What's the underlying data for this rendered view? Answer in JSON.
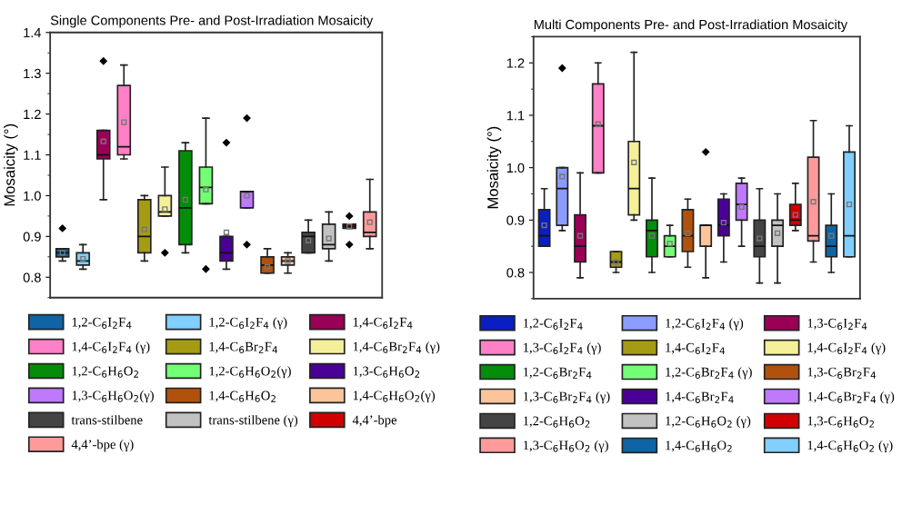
{
  "chart_data": [
    {
      "type": "box",
      "title": "Single Components Pre- and Post-Irradiation Mosaicity",
      "ylabel": "Mosaicity (°)",
      "tick_labels": "y",
      "legend": "bottom",
      "ylim": [
        0.75,
        1.4
      ],
      "yticks": [
        0.8,
        0.9,
        {
          "value": 1.0,
          "label": "1.0"
        },
        1.1,
        1.2,
        1.3,
        1.4
      ],
      "categories": [
        null,
        null,
        null,
        null,
        null,
        null,
        null,
        null,
        null,
        null,
        null,
        null,
        null,
        null,
        null,
        null
      ],
      "series": [
        {
          "name": "1,2-C$_{6}$I$_{2}$F$_{4}$",
          "color": "#0e64a4",
          "boxes": [
            {
              "low": 0.84,
              "q1": 0.85,
              "median": 0.86,
              "q3": 0.87,
              "high": 0.87,
              "mean": 0.86,
              "outliers": [
                0.92
              ]
            },
            null,
            null,
            null,
            null,
            null,
            null,
            null,
            null,
            null,
            null,
            null,
            null,
            null,
            null,
            null
          ]
        },
        {
          "name": "1,2-C$_{6}$I$_{2}$F$_{4}$ (γ)",
          "color": "#80cfff",
          "boxes": [
            null,
            {
              "low": 0.82,
              "q1": 0.83,
              "median": 0.84,
              "q3": 0.86,
              "high": 0.88,
              "mean": 0.845
            },
            null,
            null,
            null,
            null,
            null,
            null,
            null,
            null,
            null,
            null,
            null,
            null,
            null,
            null
          ]
        },
        {
          "name": "1,4-C$_{6}$I$_{2}$F$_{4}$",
          "color": "#9b0057",
          "boxes": [
            null,
            null,
            {
              "low": 0.99,
              "q1": 1.09,
              "median": 1.1,
              "q3": 1.16,
              "high": 1.16,
              "mean": 1.133,
              "outliers": [
                1.33
              ]
            },
            null,
            null,
            null,
            null,
            null,
            null,
            null,
            null,
            null,
            null,
            null,
            null,
            null
          ]
        },
        {
          "name": "1,4-C$_{6}$I$_{2}$F$_{4}$ (γ)",
          "color": "#ff80c6",
          "boxes": [
            null,
            null,
            null,
            {
              "low": 1.09,
              "q1": 1.1,
              "median": 1.12,
              "q3": 1.27,
              "high": 1.32,
              "mean": 1.18
            },
            null,
            null,
            null,
            null,
            null,
            null,
            null,
            null,
            null,
            null,
            null,
            null
          ]
        },
        {
          "name": "1,4-C$_{6}$Br$_{2}$F$_{4}$",
          "color": "#a59c14",
          "boxes": [
            null,
            null,
            null,
            null,
            {
              "low": 0.84,
              "q1": 0.86,
              "median": 0.9,
              "q3": 0.99,
              "high": 1.0,
              "mean": 0.917
            },
            null,
            null,
            null,
            null,
            null,
            null,
            null,
            null,
            null,
            null,
            null
          ]
        },
        {
          "name": "1,4-C$_{6}$Br$_{2}$F$_{4}$ (γ)",
          "color": "#f4f09a",
          "boxes": [
            null,
            null,
            null,
            null,
            null,
            {
              "low": 0.95,
              "q1": 0.95,
              "median": 0.96,
              "q3": 1.0,
              "high": 1.07,
              "mean": 0.967,
              "outliers": [
                0.86
              ]
            },
            null,
            null,
            null,
            null,
            null,
            null,
            null,
            null,
            null,
            null
          ]
        },
        {
          "name": "1,2-C$_{6}$H$_{6}$O$_{2}$",
          "color": "#048c0a",
          "boxes": [
            null,
            null,
            null,
            null,
            null,
            null,
            {
              "low": 0.86,
              "q1": 0.88,
              "median": 0.97,
              "q3": 1.11,
              "high": 1.13,
              "mean": 0.99
            },
            null,
            null,
            null,
            null,
            null,
            null,
            null,
            null,
            null
          ]
        },
        {
          "name": "1,2-C$_{6}$H$_{6}$O$_{2}$(γ)",
          "color": "#74fe76",
          "boxes": [
            null,
            null,
            null,
            null,
            null,
            null,
            null,
            {
              "low": 0.98,
              "q1": 0.98,
              "median": 1.02,
              "q3": 1.07,
              "high": 1.19,
              "mean": 1.015,
              "outliers": [
                0.82
              ]
            },
            null,
            null,
            null,
            null,
            null,
            null,
            null,
            null
          ]
        },
        {
          "name": "1,3-C$_{6}$H$_{6}$O$_{2}$",
          "color": "#4a0096",
          "boxes": [
            null,
            null,
            null,
            null,
            null,
            null,
            null,
            null,
            {
              "low": 0.82,
              "q1": 0.84,
              "median": 0.86,
              "q3": 0.9,
              "high": 0.9,
              "mean": 0.91,
              "outliers": [
                1.13
              ]
            },
            null,
            null,
            null,
            null,
            null,
            null,
            null
          ]
        },
        {
          "name": "1,3-C$_{6}$H$_{6}$O$_{2}$(γ)",
          "color": "#bf79fc",
          "boxes": [
            null,
            null,
            null,
            null,
            null,
            null,
            null,
            null,
            null,
            {
              "low": 0.97,
              "q1": 0.97,
              "median": 1.01,
              "q3": 1.01,
              "high": 1.01,
              "mean": 1.0,
              "outliers": [
                1.19,
                0.88
              ]
            },
            null,
            null,
            null,
            null,
            null,
            null
          ]
        },
        {
          "name": "1,4-C$_{6}$H$_{6}$O$_{2}$",
          "color": "#b0520d",
          "boxes": [
            null,
            null,
            null,
            null,
            null,
            null,
            null,
            null,
            null,
            null,
            {
              "low": 0.81,
              "q1": 0.81,
              "median": 0.83,
              "q3": 0.85,
              "high": 0.87,
              "mean": 0.825
            },
            null,
            null,
            null,
            null,
            null
          ]
        },
        {
          "name": "1,4-C$_{6}$H$_{6}$O$_{2}$(γ)",
          "color": "#fcc49a",
          "boxes": [
            null,
            null,
            null,
            null,
            null,
            null,
            null,
            null,
            null,
            null,
            null,
            {
              "low": 0.81,
              "q1": 0.83,
              "median": 0.84,
              "q3": 0.85,
              "high": 0.86,
              "mean": 0.84
            },
            null,
            null,
            null,
            null
          ]
        },
        {
          "name": "trans-stilbene",
          "color": "#444444",
          "boxes": [
            null,
            null,
            null,
            null,
            null,
            null,
            null,
            null,
            null,
            null,
            null,
            null,
            {
              "low": 0.86,
              "q1": 0.86,
              "median": 0.9,
              "q3": 0.91,
              "high": 0.94,
              "mean": 0.89
            },
            null,
            null,
            null
          ]
        },
        {
          "name": "trans-stilbene (γ)",
          "color": "#c2c2c2",
          "boxes": [
            null,
            null,
            null,
            null,
            null,
            null,
            null,
            null,
            null,
            null,
            null,
            null,
            null,
            {
              "low": 0.84,
              "q1": 0.87,
              "median": 0.88,
              "q3": 0.93,
              "high": 0.96,
              "mean": 0.895
            },
            null,
            null
          ]
        },
        {
          "name": "4,4’-bpe",
          "color": "#d00000",
          "boxes": [
            null,
            null,
            null,
            null,
            null,
            null,
            null,
            null,
            null,
            null,
            null,
            null,
            null,
            null,
            {
              "low": 0.92,
              "q1": 0.92,
              "median": 0.925,
              "q3": 0.93,
              "high": 0.93,
              "mean": 0.925,
              "outliers": [
                0.95,
                0.88
              ]
            },
            null
          ]
        },
        {
          "name": "4,4’-bpe (γ)",
          "color": "#ff9a9a",
          "boxes": [
            null,
            null,
            null,
            null,
            null,
            null,
            null,
            null,
            null,
            null,
            null,
            null,
            null,
            null,
            null,
            {
              "low": 0.87,
              "q1": 0.9,
              "median": 0.91,
              "q3": 0.96,
              "high": 1.04,
              "mean": 0.935
            }
          ]
        }
      ]
    },
    {
      "type": "box",
      "title": "Multi Components Pre- and Post-Irradiation Mosaicity",
      "ylabel": "Mosaicity (°)",
      "tick_labels": "y",
      "legend": "bottom",
      "ylim": [
        0.75,
        1.25
      ],
      "yticks": [
        0.8,
        0.9,
        {
          "value": 1.0,
          "label": "1.0"
        },
        1.1,
        1.2
      ],
      "categories": [
        null,
        null,
        null,
        null,
        null,
        null,
        null,
        null,
        null,
        null,
        null,
        null,
        null,
        null,
        null,
        null,
        null,
        null
      ],
      "series": [
        {
          "name": "1,2-C$_{6}$I$_{2}$F$_{4}$",
          "color": "#0a1ec2",
          "boxes": [
            {
              "low": 0.85,
              "q1": 0.85,
              "median": 0.87,
              "q3": 0.92,
              "high": 0.96,
              "mean": 0.89
            },
            null,
            null,
            null,
            null,
            null,
            null,
            null,
            null,
            null,
            null,
            null,
            null,
            null,
            null,
            null,
            null,
            null
          ]
        },
        {
          "name": "1,2-C$_{6}$I$_{2}$F$_{4}$ (γ)",
          "color": "#8c9cfc",
          "boxes": [
            null,
            {
              "low": 0.88,
              "q1": 0.89,
              "median": 0.96,
              "q3": 1.0,
              "high": 1.0,
              "mean": 0.983,
              "outliers": [
                1.19
              ]
            },
            null,
            null,
            null,
            null,
            null,
            null,
            null,
            null,
            null,
            null,
            null,
            null,
            null,
            null,
            null,
            null
          ]
        },
        {
          "name": "1,3-C$_{6}$I$_{2}$F$_{4}$",
          "color": "#9b0057",
          "boxes": [
            null,
            null,
            {
              "low": 0.79,
              "q1": 0.82,
              "median": 0.85,
              "q3": 0.91,
              "high": 0.99,
              "mean": 0.87
            },
            null,
            null,
            null,
            null,
            null,
            null,
            null,
            null,
            null,
            null,
            null,
            null,
            null,
            null,
            null
          ]
        },
        {
          "name": "1,3-C$_{6}$I$_{2}$F$_{4}$ (γ)",
          "color": "#ff80c6",
          "boxes": [
            null,
            null,
            null,
            {
              "low": 0.99,
              "q1": 0.99,
              "median": 1.08,
              "q3": 1.16,
              "high": 1.2,
              "mean": 1.083
            },
            null,
            null,
            null,
            null,
            null,
            null,
            null,
            null,
            null,
            null,
            null,
            null,
            null,
            null
          ]
        },
        {
          "name": "1,4-C$_{6}$I$_{2}$F$_{4}$",
          "color": "#a59c14",
          "boxes": [
            null,
            null,
            null,
            null,
            {
              "low": 0.8,
              "q1": 0.81,
              "median": 0.82,
              "q3": 0.84,
              "high": 0.84,
              "mean": 0.82
            },
            null,
            null,
            null,
            null,
            null,
            null,
            null,
            null,
            null,
            null,
            null,
            null,
            null
          ]
        },
        {
          "name": "1,4-C$_{6}$I$_{2}$F$_{4}$ (γ)",
          "color": "#f4f09a",
          "boxes": [
            null,
            null,
            null,
            null,
            null,
            {
              "low": 0.9,
              "q1": 0.91,
              "median": 0.96,
              "q3": 1.05,
              "high": 1.22,
              "mean": 1.01
            },
            null,
            null,
            null,
            null,
            null,
            null,
            null,
            null,
            null,
            null,
            null,
            null
          ]
        },
        {
          "name": "1,2-C$_{6}$Br$_{2}$F$_{4}$",
          "color": "#048c0a",
          "boxes": [
            null,
            null,
            null,
            null,
            null,
            null,
            {
              "low": 0.8,
              "q1": 0.83,
              "median": 0.88,
              "q3": 0.9,
              "high": 0.98,
              "mean": 0.87
            },
            null,
            null,
            null,
            null,
            null,
            null,
            null,
            null,
            null,
            null,
            null
          ]
        },
        {
          "name": "1,2-C$_{6}$Br$_{2}$F$_{4}$ (γ)",
          "color": "#74fe76",
          "boxes": [
            null,
            null,
            null,
            null,
            null,
            null,
            null,
            {
              "low": 0.83,
              "q1": 0.83,
              "median": 0.85,
              "q3": 0.87,
              "high": 0.89,
              "mean": 0.855
            },
            null,
            null,
            null,
            null,
            null,
            null,
            null,
            null,
            null,
            null
          ]
        },
        {
          "name": "1,3-C$_{6}$Br$_{2}$F$_{4}$",
          "color": "#b0520d",
          "boxes": [
            null,
            null,
            null,
            null,
            null,
            null,
            null,
            null,
            {
              "low": 0.81,
              "q1": 0.84,
              "median": 0.87,
              "q3": 0.92,
              "high": 0.94,
              "mean": 0.875
            },
            null,
            null,
            null,
            null,
            null,
            null,
            null,
            null,
            null
          ]
        },
        {
          "name": "1,3-C$_{6}$Br$_{2}$F$_{4}$ (γ)",
          "color": "#fcc49a",
          "boxes": [
            null,
            null,
            null,
            null,
            null,
            null,
            null,
            null,
            null,
            {
              "low": 0.79,
              "q1": 0.85,
              "median": 0.89,
              "q3": 0.89,
              "high": 0.89,
              "outliers": [
                1.03
              ]
            },
            null,
            null,
            null,
            null,
            null,
            null,
            null,
            null
          ]
        },
        {
          "name": "1,4-C$_{6}$Br$_{2}$F$_{4}$",
          "color": "#4a0096",
          "boxes": [
            null,
            null,
            null,
            null,
            null,
            null,
            null,
            null,
            null,
            null,
            {
              "low": 0.82,
              "q1": 0.87,
              "median": 0.89,
              "q3": 0.94,
              "high": 0.95,
              "mean": 0.895
            },
            null,
            null,
            null,
            null,
            null,
            null,
            null
          ]
        },
        {
          "name": "1,4-C$_{6}$Br$_{2}$F$_{4}$ (γ)",
          "color": "#bf79fc",
          "boxes": [
            null,
            null,
            null,
            null,
            null,
            null,
            null,
            null,
            null,
            null,
            null,
            {
              "low": 0.85,
              "q1": 0.9,
              "median": 0.93,
              "q3": 0.97,
              "high": 0.98,
              "mean": 0.925
            },
            null,
            null,
            null,
            null,
            null,
            null
          ]
        },
        {
          "name": "1,2-C$_{6}$H$_{6}$O$_{2}$",
          "color": "#444444",
          "boxes": [
            null,
            null,
            null,
            null,
            null,
            null,
            null,
            null,
            null,
            null,
            null,
            null,
            {
              "low": 0.78,
              "q1": 0.83,
              "median": 0.85,
              "q3": 0.9,
              "high": 0.96,
              "mean": 0.865
            },
            null,
            null,
            null,
            null,
            null
          ]
        },
        {
          "name": "1,2-C$_{6}$H$_{6}$O$_{2}$ (γ)",
          "color": "#c2c2c2",
          "boxes": [
            null,
            null,
            null,
            null,
            null,
            null,
            null,
            null,
            null,
            null,
            null,
            null,
            null,
            {
              "low": 0.78,
              "q1": 0.85,
              "median": 0.89,
              "q3": 0.9,
              "high": 0.95,
              "mean": 0.875
            },
            null,
            null,
            null,
            null
          ]
        },
        {
          "name": "1,3-C$_{6}$H$_{6}$O$_{2}$",
          "color": "#d00000",
          "boxes": [
            null,
            null,
            null,
            null,
            null,
            null,
            null,
            null,
            null,
            null,
            null,
            null,
            null,
            null,
            {
              "low": 0.88,
              "q1": 0.89,
              "median": 0.9,
              "q3": 0.93,
              "high": 0.97,
              "mean": 0.91
            },
            null,
            null,
            null
          ]
        },
        {
          "name": "1,3-C$_{6}$H$_{6}$O$_{2}$ (γ)",
          "color": "#ff9a9a",
          "boxes": [
            null,
            null,
            null,
            null,
            null,
            null,
            null,
            null,
            null,
            null,
            null,
            null,
            null,
            null,
            null,
            {
              "low": 0.82,
              "q1": 0.86,
              "median": 0.87,
              "q3": 1.02,
              "high": 1.09,
              "mean": 0.935
            },
            null,
            null
          ]
        },
        {
          "name": "1,4-C$_{6}$H$_{6}$O$_{2}$",
          "color": "#0e64a4",
          "boxes": [
            null,
            null,
            null,
            null,
            null,
            null,
            null,
            null,
            null,
            null,
            null,
            null,
            null,
            null,
            null,
            null,
            {
              "low": 0.8,
              "q1": 0.83,
              "median": 0.85,
              "q3": 0.89,
              "high": 0.95,
              "mean": 0.87
            },
            null
          ]
        },
        {
          "name": "1,4-C$_{6}$H$_{6}$O$_{2}$ (γ)",
          "color": "#80cfff",
          "boxes": [
            null,
            null,
            null,
            null,
            null,
            null,
            null,
            null,
            null,
            null,
            null,
            null,
            null,
            null,
            null,
            null,
            null,
            {
              "low": 0.83,
              "q1": 0.83,
              "median": 0.87,
              "q3": 1.03,
              "high": 1.08,
              "mean": 0.93
            }
          ]
        }
      ]
    }
  ]
}
